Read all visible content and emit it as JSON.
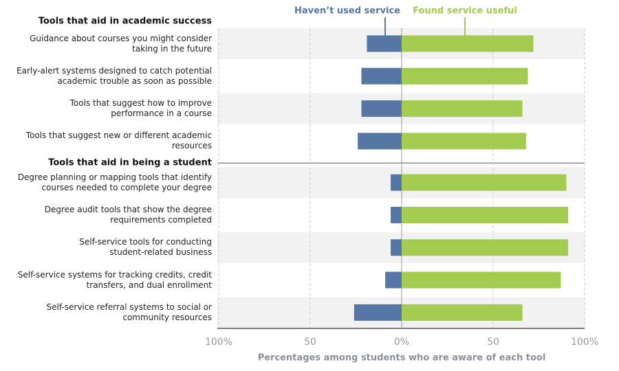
{
  "chart_data": {
    "type": "diverging-bar",
    "groups": [
      {
        "title": "Tools that aid in academic success",
        "categories": [
          "Guidance about courses you might consider\ntaking in the future",
          "Early-alert systems designed to catch potential\nacademic trouble as soon as possible",
          "Tools that suggest how to improve\nperformance in a course",
          "Tools that suggest new or different academic\nresources"
        ]
      },
      {
        "title": "Tools that aid in being a student",
        "categories": [
          "Degree planning or mapping tools that identify\ncourses needed to complete your degree",
          "Degree audit tools that show the degree\nrequirements completed",
          "Self-service tools for conducting\nstudent-related business",
          "Self-service systems for tracking credits, credit\ntransfers, and dual enrollment",
          "Self-service referral systems to social or\ncommunity resources"
        ]
      }
    ],
    "series": [
      {
        "name": "Haven’t used service",
        "color": "#5677a6",
        "values": [
          -19,
          -22,
          -22,
          -24,
          -6,
          -6,
          -6,
          -9,
          -26
        ]
      },
      {
        "name": "Found service useful",
        "color": "#a2cb50",
        "values": [
          72,
          69,
          66,
          68,
          90,
          91,
          91,
          87,
          66
        ]
      }
    ],
    "x_label": "Percentages among students who are aware of each tool",
    "xlim": [
      -100,
      100
    ],
    "xticks": [
      {
        "value": -100,
        "label": "100%"
      },
      {
        "value": -50,
        "label": "50"
      },
      {
        "value": 0,
        "label": "0%"
      },
      {
        "value": 50,
        "label": "50"
      },
      {
        "value": 100,
        "label": "100%"
      }
    ],
    "grid": true
  }
}
